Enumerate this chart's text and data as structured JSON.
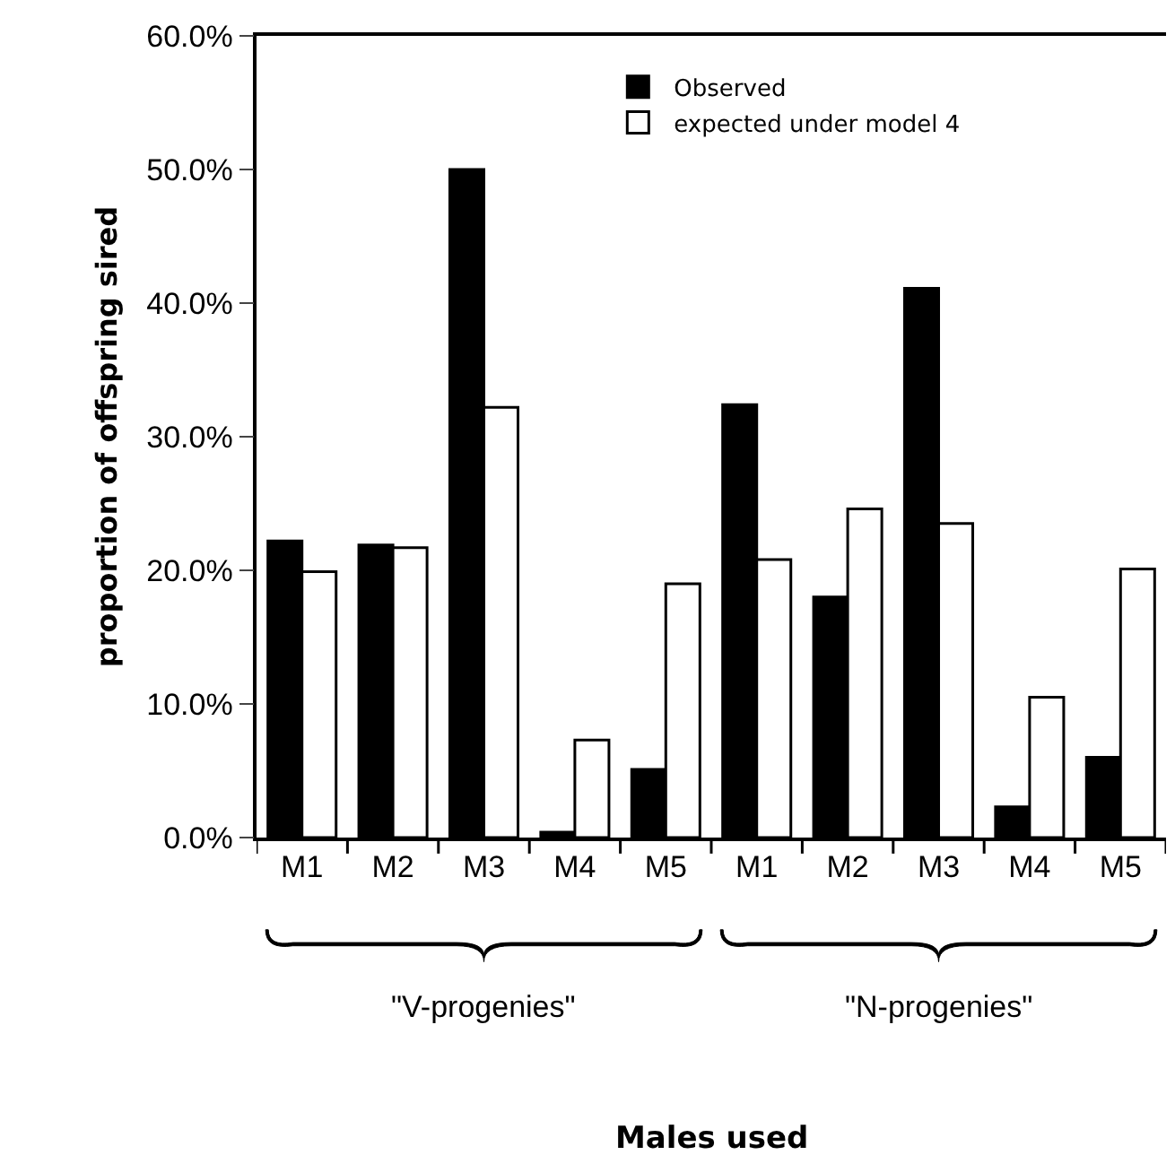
{
  "chart_data": {
    "type": "bar",
    "ylabel": "proportion of offspring sired",
    "categories": [
      "M1",
      "M2",
      "M3",
      "M4",
      "M5",
      "M1",
      "M2",
      "M3",
      "M4",
      "M5"
    ],
    "series": [
      {
        "name": "Observed",
        "color": "#000000",
        "values": [
          22.2,
          21.9,
          50.0,
          0.4,
          5.1,
          32.4,
          18.0,
          41.1,
          2.3,
          6.0
        ]
      },
      {
        "name": "expected under model 4",
        "color": "#ffffff",
        "values": [
          19.9,
          21.7,
          32.2,
          7.3,
          19.0,
          20.8,
          24.6,
          23.5,
          10.5,
          20.1
        ]
      }
    ],
    "ylim": [
      0,
      60
    ],
    "yticks": [
      {
        "value": 0,
        "label": "0.0%"
      },
      {
        "value": 10,
        "label": "10.0%"
      },
      {
        "value": 20,
        "label": "20.0%"
      },
      {
        "value": 30,
        "label": "30.0%"
      },
      {
        "value": 40,
        "label": "40.0%"
      },
      {
        "value": 50,
        "label": "50.0%"
      },
      {
        "value": 60,
        "label": "60.0%"
      }
    ],
    "annotations": [
      "\"V-progenies\"",
      "\"N-progenies\"",
      "Males used"
    ],
    "legend": "top right"
  }
}
